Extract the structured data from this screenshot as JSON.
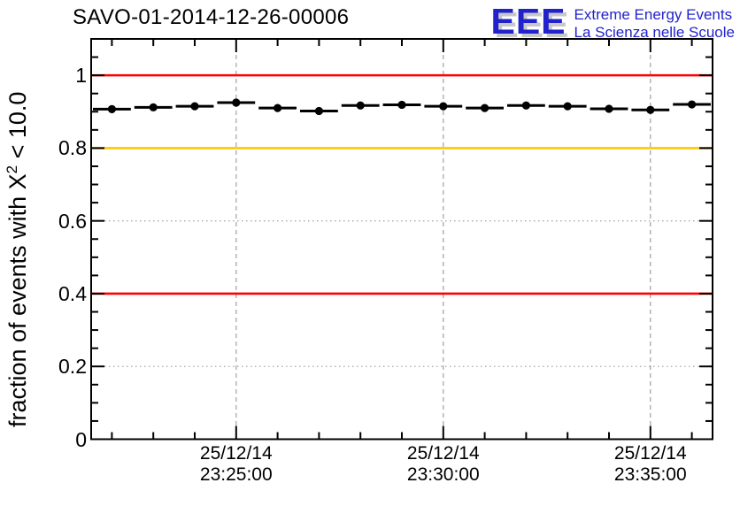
{
  "header": {
    "title": "SAVO-01-2014-12-26-00006",
    "logo": {
      "acronym": "EEE",
      "line1": "Extreme Energy Events",
      "line2": "La Scienza nelle Scuole",
      "color": "#2222cc",
      "shadow_color": "#c8c8c8"
    }
  },
  "chart_data": {
    "type": "scatter",
    "title": "SAVO-01-2014-12-26-00006",
    "ylabel": {
      "pre": "fraction of events with X",
      "sup": "2",
      "post": " < 10.0"
    },
    "ylim": [
      0,
      1.1
    ],
    "x_span_seconds": 900,
    "x_start_time": "25/12/14 23:21:30",
    "grid": {
      "on": true,
      "color": "#a8a8a8"
    },
    "axis_color": "#000000",
    "y_major_ticks": [
      {
        "value": 0.0,
        "label": "0"
      },
      {
        "value": 0.2,
        "label": "0.2"
      },
      {
        "value": 0.4,
        "label": "0.4"
      },
      {
        "value": 0.6,
        "label": "0.6"
      },
      {
        "value": 0.8,
        "label": "0.8"
      },
      {
        "value": 1.0,
        "label": "1"
      }
    ],
    "y_minor_step": 0.05,
    "x_major_ticks": [
      {
        "t": 210,
        "date": "25/12/14",
        "time": "23:25:00"
      },
      {
        "t": 510,
        "date": "25/12/14",
        "time": "23:30:00"
      },
      {
        "t": 810,
        "date": "25/12/14",
        "time": "23:35:00"
      }
    ],
    "x_minor_step_seconds": 60,
    "x_first_minor_t": 30,
    "reference_lines": [
      {
        "value": 1.0,
        "color": "#ff0000"
      },
      {
        "value": 0.8,
        "color": "#ffc800"
      },
      {
        "value": 0.4,
        "color": "#ff0000"
      }
    ],
    "series": [
      {
        "name": "fraction of events",
        "marker": "filled-circle",
        "color": "#000000",
        "xerr_seconds": 30,
        "points": [
          {
            "time": "23:22:00",
            "t": 30,
            "value": 0.907
          },
          {
            "time": "23:23:00",
            "t": 90,
            "value": 0.912
          },
          {
            "time": "23:24:00",
            "t": 150,
            "value": 0.915
          },
          {
            "time": "23:25:00",
            "t": 210,
            "value": 0.925
          },
          {
            "time": "23:26:00",
            "t": 270,
            "value": 0.91
          },
          {
            "time": "23:27:00",
            "t": 330,
            "value": 0.902
          },
          {
            "time": "23:28:00",
            "t": 390,
            "value": 0.917
          },
          {
            "time": "23:29:00",
            "t": 450,
            "value": 0.919
          },
          {
            "time": "23:30:00",
            "t": 510,
            "value": 0.915
          },
          {
            "time": "23:31:00",
            "t": 570,
            "value": 0.91
          },
          {
            "time": "23:32:00",
            "t": 630,
            "value": 0.917
          },
          {
            "time": "23:33:00",
            "t": 690,
            "value": 0.915
          },
          {
            "time": "23:34:00",
            "t": 750,
            "value": 0.908
          },
          {
            "time": "23:35:00",
            "t": 810,
            "value": 0.905
          },
          {
            "time": "23:36:00",
            "t": 870,
            "value": 0.92
          }
        ]
      }
    ]
  }
}
